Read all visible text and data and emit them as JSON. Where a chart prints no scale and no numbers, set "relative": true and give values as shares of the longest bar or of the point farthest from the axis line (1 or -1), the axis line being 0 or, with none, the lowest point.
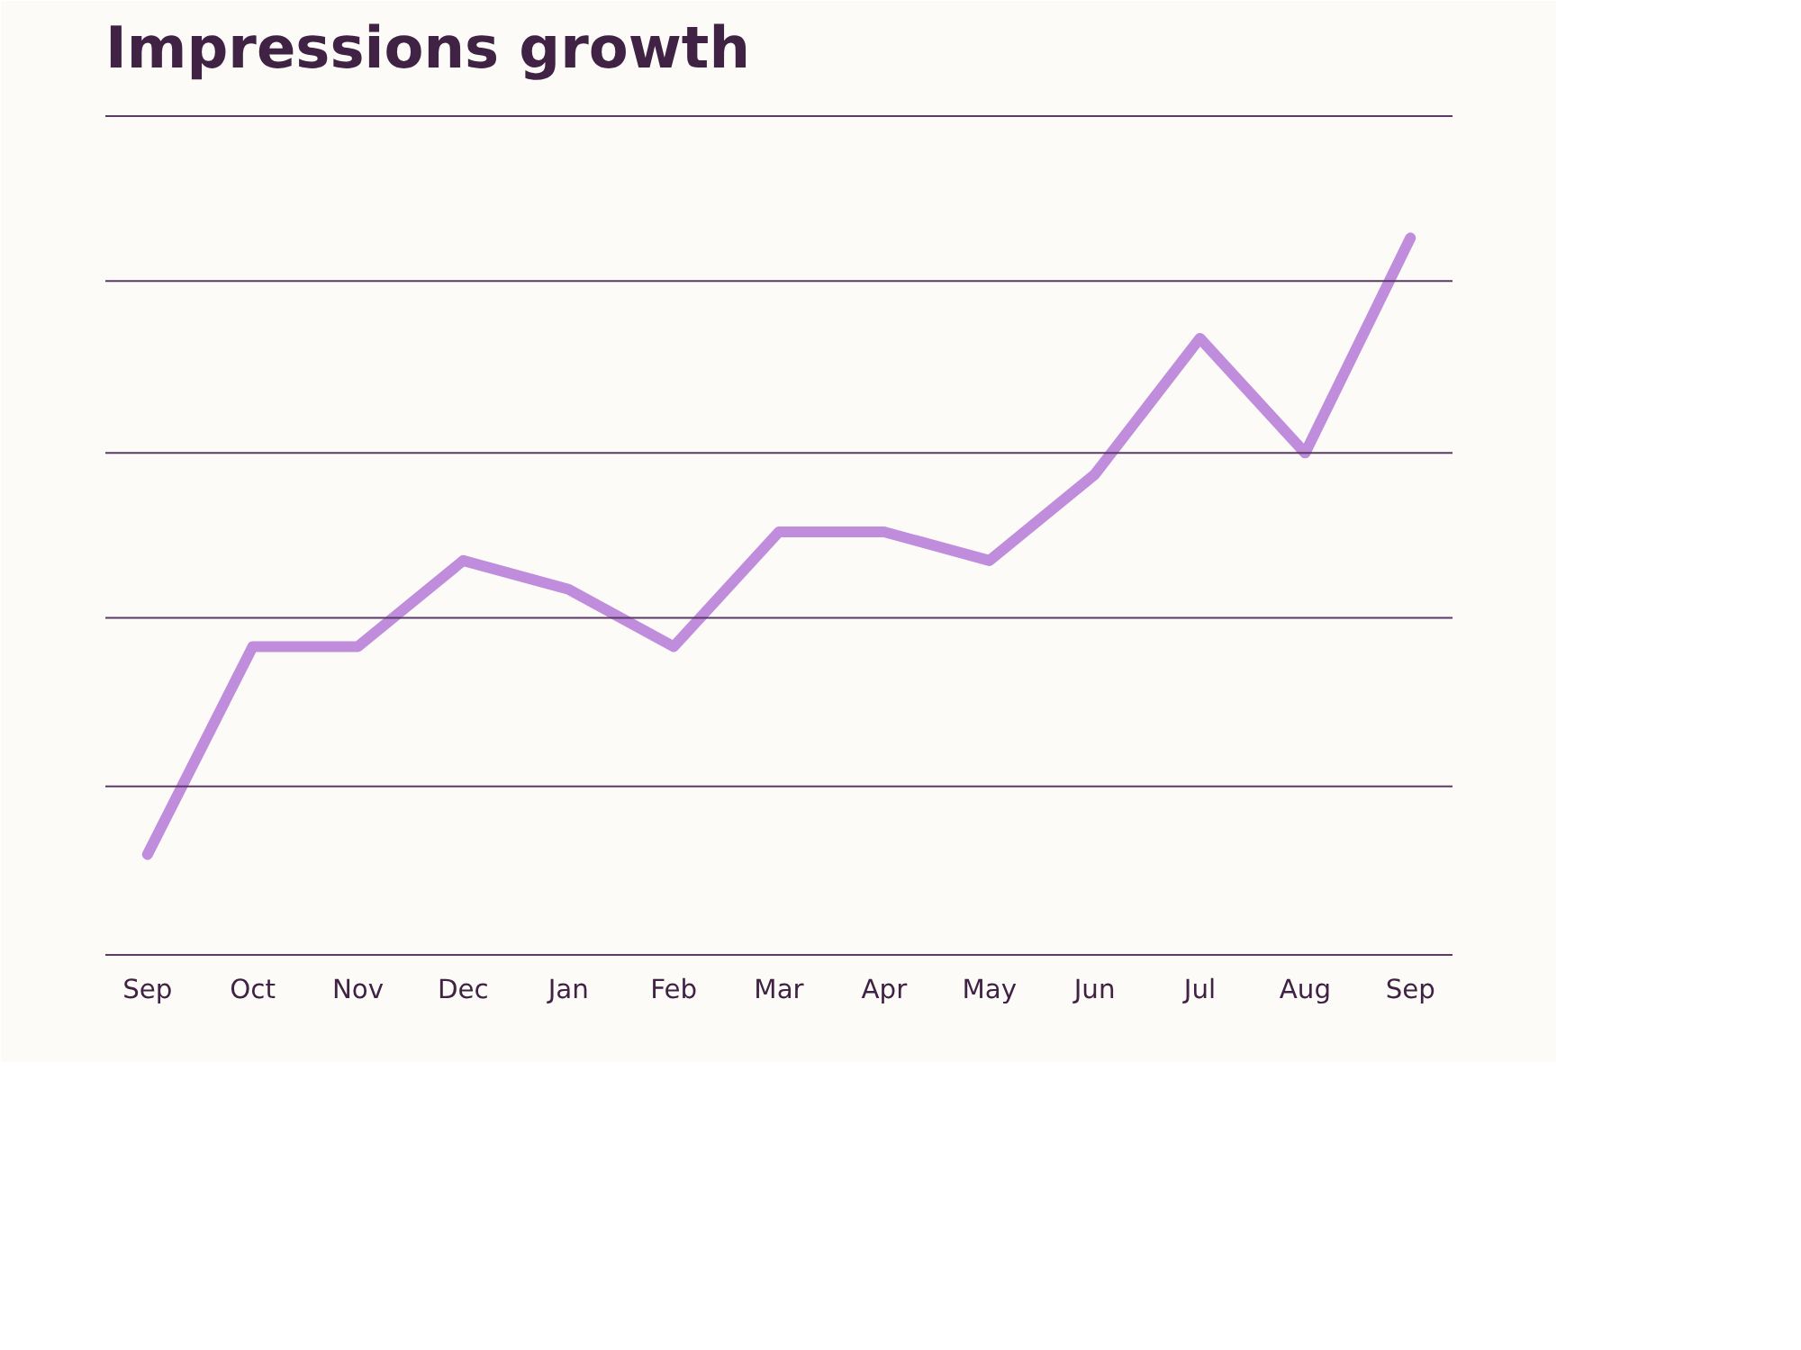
{
  "chart_data": {
    "type": "line",
    "title": "Impressions growth",
    "relative": true,
    "ref_lines": [
      {
        "axis": "y",
        "value": 0.235,
        "color": "#5b3a66"
      },
      {
        "axis": "y",
        "value": 0.47,
        "color": "#5b3a66"
      },
      {
        "axis": "y",
        "value": 0.7,
        "color": "#5b3a66"
      },
      {
        "axis": "y",
        "value": 0.94,
        "color": "#5b3a66"
      },
      {
        "axis": "y",
        "value": 1.17,
        "color": "#5b3a66"
      }
    ],
    "line_style": "solid",
    "marker": "none",
    "categories": [
      "Sep",
      "Oct",
      "Nov",
      "Dec",
      "Jan",
      "Feb",
      "Mar",
      "Apr",
      "May",
      "Jun",
      "Jul",
      "Aug",
      "Sep"
    ],
    "series": [
      {
        "color": "#c08cdc",
        "values": [
          0.14,
          0.43,
          0.43,
          0.55,
          0.51,
          0.43,
          0.59,
          0.59,
          0.55,
          0.67,
          0.86,
          0.7,
          1
        ]
      }
    ]
  }
}
